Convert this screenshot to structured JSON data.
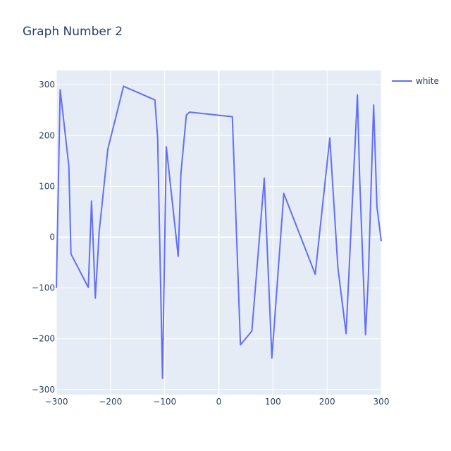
{
  "chart_data": {
    "type": "line",
    "title": "Graph Number 2",
    "xlabel": "",
    "ylabel": "",
    "xlim": [
      -300,
      300
    ],
    "ylim": [
      -310,
      328
    ],
    "x_ticks": [
      -300,
      -200,
      -100,
      0,
      100,
      200,
      300
    ],
    "x_tick_labels": [
      "−300",
      "−200",
      "−100",
      "0",
      "100",
      "200",
      "300"
    ],
    "y_ticks": [
      -300,
      -200,
      -100,
      0,
      100,
      200,
      300
    ],
    "y_tick_labels": [
      "−300",
      "−200",
      "−100",
      "0",
      "100",
      "200",
      "300"
    ],
    "grid": true,
    "legend_position": "top-right",
    "background": "#e5ecf6",
    "series": [
      {
        "name": "white",
        "color": "#636efa",
        "x": [
          -300,
          -293,
          -277,
          -273,
          -241,
          -235,
          -228,
          -221,
          -205,
          -176,
          -118,
          -113,
          -104,
          -97,
          -75,
          -70,
          -60,
          -54,
          25,
          40,
          61,
          84,
          98,
          120,
          178,
          205,
          220,
          235,
          256,
          260,
          271,
          276,
          286,
          292,
          300
        ],
        "y": [
          -100,
          290,
          140,
          -33,
          -99,
          71,
          -120,
          10,
          173,
          297,
          270,
          195,
          -278,
          178,
          -38,
          125,
          240,
          246,
          237,
          -212,
          -185,
          116,
          -238,
          86,
          -73,
          195,
          -60,
          -190,
          280,
          120,
          -192,
          -83,
          260,
          60,
          -8
        ]
      }
    ]
  }
}
